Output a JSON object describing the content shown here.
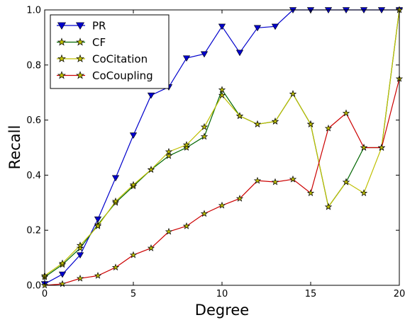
{
  "chart_data": {
    "type": "line",
    "title": "",
    "xlabel": "Degree",
    "ylabel": "Recall",
    "xlim": [
      0,
      20
    ],
    "ylim": [
      0,
      1.0
    ],
    "xticks": [
      0,
      5,
      10,
      15,
      20
    ],
    "yticks": [
      0.0,
      0.2,
      0.4,
      0.6,
      0.8,
      1.0
    ],
    "ytick_labels": [
      "0.0",
      "0.2",
      "0.4",
      "0.6",
      "0.8",
      "1.0"
    ],
    "grid": false,
    "legend_position": "top-left",
    "x": [
      0,
      1,
      2,
      3,
      4,
      5,
      6,
      7,
      8,
      9,
      10,
      11,
      12,
      13,
      14,
      15,
      16,
      17,
      18,
      19,
      20
    ],
    "series": [
      {
        "name": "PR",
        "color": "#0000cc",
        "marker": "triangle-down",
        "values": [
          0.005,
          0.04,
          0.11,
          0.24,
          0.39,
          0.545,
          0.69,
          0.72,
          0.825,
          0.84,
          0.94,
          0.845,
          0.935,
          0.94,
          1.0,
          1.0,
          1.0,
          1.0,
          1.0,
          1.0,
          1.0
        ]
      },
      {
        "name": "CF",
        "color": "#006600",
        "marker": "star",
        "values": [
          0.03,
          0.075,
          0.135,
          0.22,
          0.3,
          0.36,
          0.42,
          0.47,
          0.5,
          0.54,
          0.71,
          0.615,
          0.585,
          0.595,
          0.695,
          0.585,
          0.285,
          0.375,
          0.5,
          0.5,
          1.0
        ]
      },
      {
        "name": "CoCitation",
        "color": "#bfbf00",
        "marker": "star",
        "values": [
          0.035,
          0.08,
          0.145,
          0.215,
          0.305,
          0.365,
          0.42,
          0.485,
          0.51,
          0.575,
          0.69,
          0.615,
          0.585,
          0.595,
          0.695,
          0.585,
          0.285,
          0.375,
          0.335,
          0.5,
          1.0
        ]
      },
      {
        "name": "CoCoupling",
        "color": "#cc0000",
        "marker": "star",
        "values": [
          0.0,
          0.005,
          0.025,
          0.035,
          0.065,
          0.11,
          0.135,
          0.195,
          0.215,
          0.26,
          0.29,
          0.315,
          0.38,
          0.375,
          0.385,
          0.335,
          0.57,
          0.625,
          0.5,
          0.5,
          0.75
        ]
      }
    ]
  }
}
